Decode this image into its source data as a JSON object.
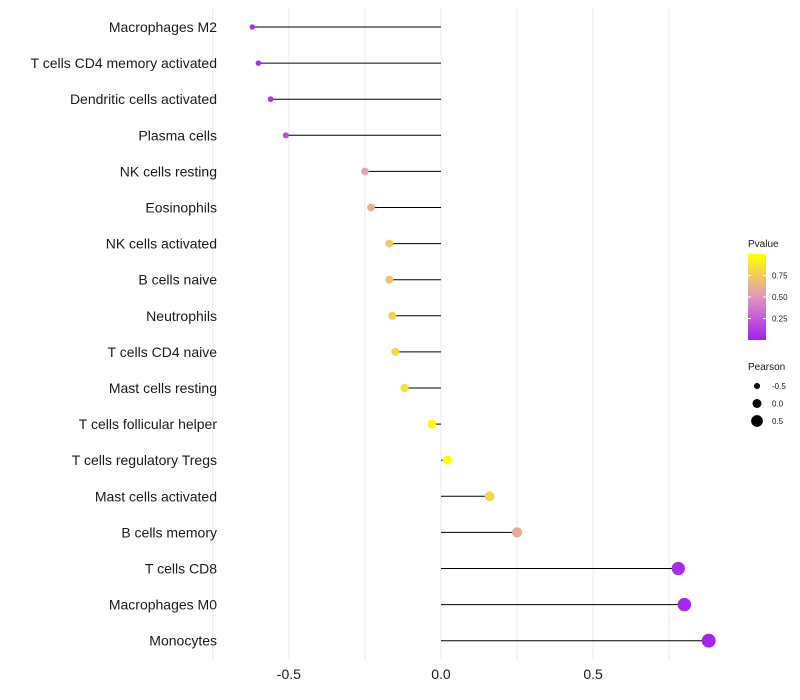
{
  "chart_data": {
    "type": "lollipop",
    "categories": [
      "Macrophages M2",
      "T cells CD4 memory activated",
      "Dendritic cells activated",
      "Plasma cells",
      "NK cells resting",
      "Eosinophils",
      "NK cells activated",
      "B cells naive",
      "Neutrophils",
      "T cells CD4 naive",
      "Mast cells resting",
      "T cells follicular helper",
      "T cells regulatory  Tregs ",
      "Mast cells activated",
      "B cells memory",
      "T cells CD8",
      "Macrophages M0",
      "Monocytes"
    ],
    "values": [
      -0.62,
      -0.6,
      -0.56,
      -0.51,
      -0.25,
      -0.23,
      -0.17,
      -0.17,
      -0.16,
      -0.15,
      -0.12,
      -0.03,
      0.02,
      0.16,
      0.25,
      0.78,
      0.8,
      0.88
    ],
    "pvalues": [
      0.05,
      0.06,
      0.1,
      0.2,
      0.55,
      0.6,
      0.75,
      0.72,
      0.78,
      0.8,
      0.85,
      0.97,
      1.0,
      0.8,
      0.6,
      0.05,
      0.04,
      0.03
    ],
    "xlim": [
      -0.7,
      0.95
    ],
    "x_ticks": [
      -0.5,
      0.0,
      0.5
    ],
    "x_tick_labels": [
      "-0.5",
      "0.0",
      "0.5"
    ],
    "grid": true,
    "legend_color": {
      "title": "Pvalue",
      "ticks": [
        0.25,
        0.5,
        0.75
      ],
      "tick_labels": [
        "0.25",
        "0.50",
        "0.75"
      ],
      "low_color": "#a020f0",
      "high_color": "#ffff00"
    },
    "legend_size": {
      "title": "Pearson",
      "values": [
        -0.5,
        0.0,
        0.5
      ],
      "labels": [
        "-0.5",
        "0.0",
        "0.5"
      ]
    },
    "colors": {
      "stem": "#000000",
      "grid": "#ebebeb"
    }
  }
}
